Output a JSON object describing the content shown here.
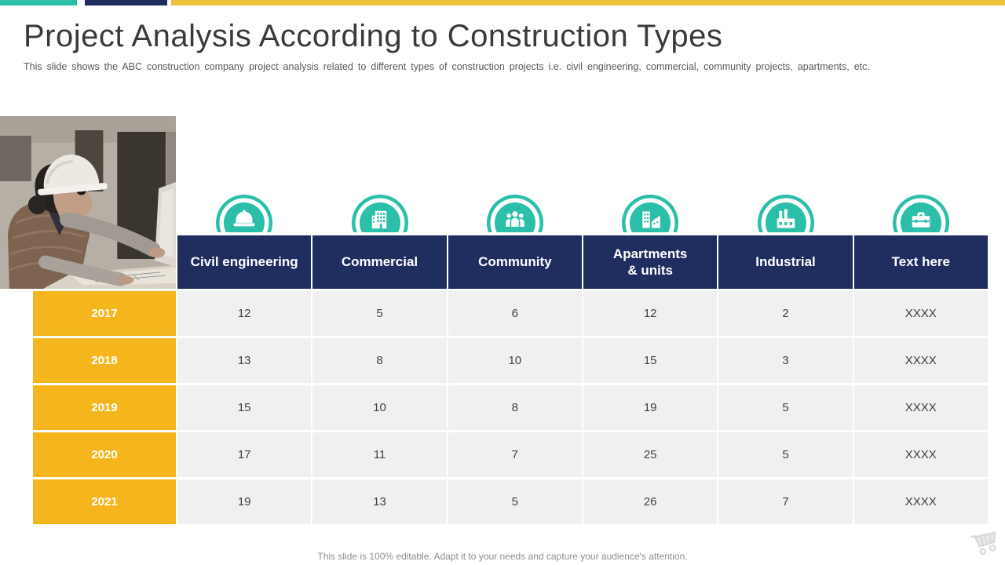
{
  "slide": {
    "title": "Project Analysis According to Construction Types",
    "subtitle": "This slide shows the ABC construction company project analysis related to different types of construction projects i.e. civil engineering, commercial, community projects, apartments, etc.",
    "footer_note": "This slide is 100% editable. Adapt it to your needs and capture your audience's attention."
  },
  "table": {
    "columns": [
      {
        "label": "Civil engineering",
        "icon": "hard-hat-icon"
      },
      {
        "label": "Commercial",
        "icon": "office-building-icon"
      },
      {
        "label": "Community",
        "icon": "people-group-icon"
      },
      {
        "label": "Apartments\n& units",
        "icon": "apartment-chart-icon"
      },
      {
        "label": "Industrial",
        "icon": "factory-icon"
      },
      {
        "label": "Text here",
        "icon": "toolbox-icon"
      }
    ],
    "rows": [
      {
        "year": "2017",
        "values": [
          "12",
          "5",
          "6",
          "12",
          "2",
          "XXXX"
        ]
      },
      {
        "year": "2018",
        "values": [
          "13",
          "8",
          "10",
          "15",
          "3",
          "XXXX"
        ]
      },
      {
        "year": "2019",
        "values": [
          "15",
          "10",
          "8",
          "19",
          "5",
          "XXXX"
        ]
      },
      {
        "year": "2020",
        "values": [
          "17",
          "11",
          "7",
          "25",
          "5",
          "XXXX"
        ]
      },
      {
        "year": "2021",
        "values": [
          "19",
          "13",
          "5",
          "26",
          "7",
          "XXXX"
        ]
      }
    ]
  },
  "colors": {
    "teal": "#2BBFA9",
    "navy": "#1F2D5F",
    "topbar-yellow": "#EEC23C",
    "year-yellow": "#F5B51D",
    "cell-bg": "#F0F0F1",
    "title-text": "#3A3A3A",
    "body-text": "#595959",
    "cell-text": "#3F3F3F",
    "footer-text": "#8C8C8C",
    "watermark-gray": "#D9D9D9"
  }
}
